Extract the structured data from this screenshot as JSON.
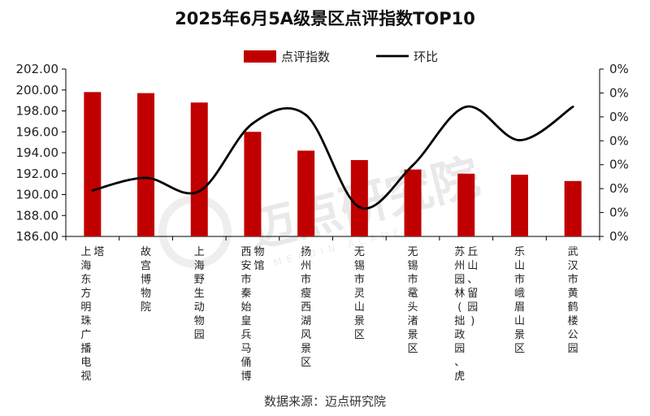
{
  "chart_data": {
    "type": "bar",
    "title": "2025年6月5A级景区点评指数TOP10",
    "categories": [
      "上海东方明珠广播电视塔",
      "故宫博物院",
      "上海野生动物园",
      "西安市秦始皇兵马俑博物馆",
      "扬州市瘦西湖风景区",
      "无锡市灵山景区",
      "无锡市鼋头渚景区",
      "苏州园林(拙政园、虎丘山、留园)",
      "乐山市峨眉山景区",
      "武汉市黄鹤楼公园"
    ],
    "category_lines": [
      [
        "上海东方明珠广播电视",
        "塔"
      ],
      [
        "故宫博物院"
      ],
      [
        "上海野生动物园"
      ],
      [
        "西安市秦始皇兵马俑博",
        "物馆"
      ],
      [
        "扬州市瘦西湖风景区"
      ],
      [
        "无锡市灵山景区"
      ],
      [
        "无锡市鼋头渚景区"
      ],
      [
        "苏州园林(拙政园、虎",
        "丘山、留园)"
      ],
      [
        "乐山市峨眉山景区"
      ],
      [
        "武汉市黄鹤楼公园"
      ]
    ],
    "series": [
      {
        "name": "点评指数",
        "type": "bar",
        "axis": "left",
        "color": "#c00000",
        "values": [
          199.8,
          199.7,
          198.8,
          196.0,
          194.2,
          193.3,
          192.4,
          192.0,
          191.9,
          191.3
        ]
      },
      {
        "name": "环比",
        "type": "line",
        "axis": "right",
        "color": "#000000",
        "values": [
          0.15,
          0.3,
          0.14,
          0.95,
          1.05,
          -0.05,
          0.45,
          1.15,
          0.75,
          1.15
        ]
      }
    ],
    "y_left": {
      "min": 186,
      "max": 202,
      "ticks": [
        "202.00",
        "200.00",
        "198.00",
        "196.00",
        "194.00",
        "192.00",
        "190.00",
        "188.00",
        "186.00"
      ]
    },
    "y_right": {
      "min": -0.4,
      "max": 1.6,
      "ticks": [
        "0%",
        "0%",
        "0%",
        "0%",
        "0%",
        "0%",
        "0%",
        "0%"
      ]
    },
    "legend_position": "top-center",
    "grid": false
  },
  "watermark": {
    "text": "迈点研究院",
    "sub": "MEADIN ACADEMY"
  },
  "source": "数据来源：迈点研究院"
}
